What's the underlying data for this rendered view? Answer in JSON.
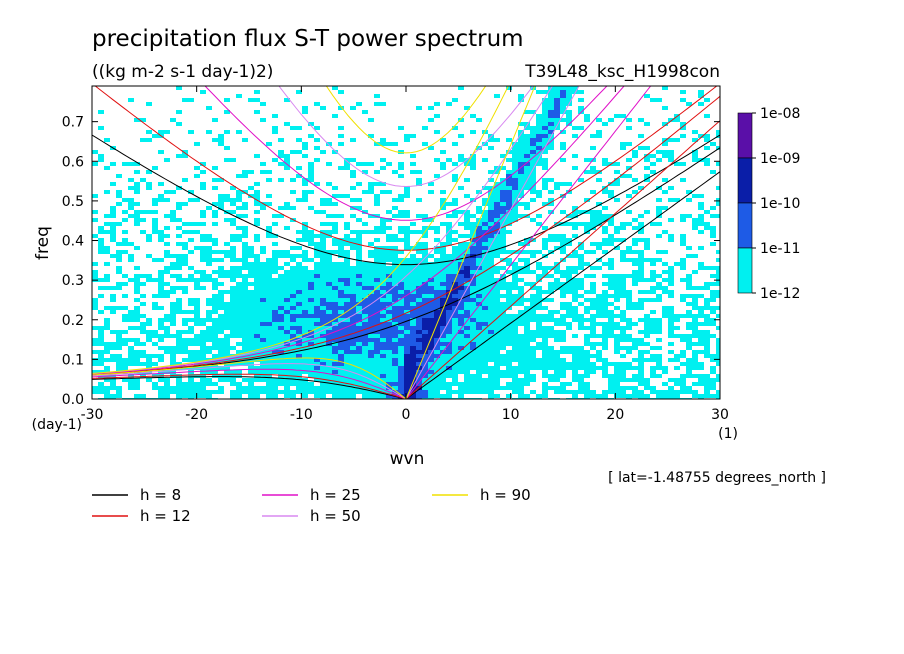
{
  "chart_data": {
    "type": "heatmap",
    "title": "precipitation flux S-T power spectrum",
    "subtitle": "((kg m-2 s-1 day-1)2)",
    "run_label": "T39L48_ksc_H1998con",
    "xlabel": "wvn",
    "x_unit": "(1)",
    "ylabel": "freq",
    "y_unit": "(day-1)",
    "xlim": [
      -30,
      30
    ],
    "ylim": [
      0,
      0.79
    ],
    "xticks": [
      "-30",
      "-20",
      "-10",
      "0",
      "10",
      "20",
      "30"
    ],
    "yticks": [
      "0.0",
      "0.1",
      "0.2",
      "0.3",
      "0.4",
      "0.5",
      "0.6",
      "0.7"
    ],
    "colorbar": {
      "labels": [
        "1e-08",
        "1e-09",
        "1e-10",
        "1e-11",
        "1e-12"
      ],
      "colors": [
        "#5a0fa8",
        "#0a1ea8",
        "#1e5be6",
        "#00f0f0"
      ],
      "background": "#ffffff"
    },
    "dispersion_curves": [
      {
        "label": "h =  8",
        "h": 8,
        "color": "#000000"
      },
      {
        "label": "h = 12",
        "h": 12,
        "color": "#e01010"
      },
      {
        "label": "h = 25",
        "h": 25,
        "color": "#e010c8"
      },
      {
        "label": "h = 50",
        "h": 50,
        "color": "#d888f0"
      },
      {
        "label": "h = 90",
        "h": 90,
        "color": "#f0e000"
      }
    ],
    "annotation": "[ lat=-1.48755 degrees_north ]"
  }
}
